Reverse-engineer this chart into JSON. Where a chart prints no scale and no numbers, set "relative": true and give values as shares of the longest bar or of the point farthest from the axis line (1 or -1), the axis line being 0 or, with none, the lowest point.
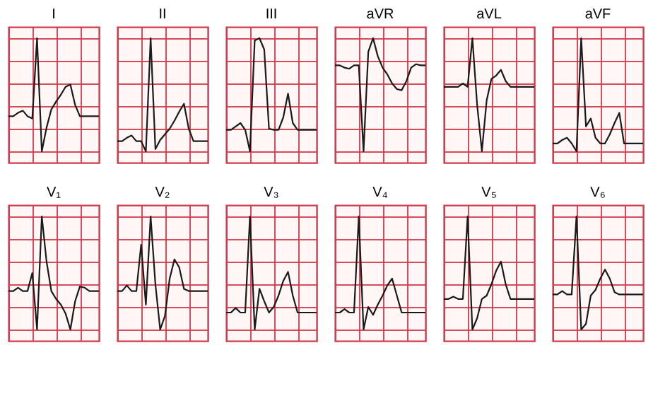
{
  "chart_data": [
    {
      "type": "line",
      "title": "I",
      "relative": true,
      "grid": true,
      "color": "#1a1a1a",
      "categories": [
        null,
        null,
        null,
        null,
        null,
        null,
        null,
        null,
        null,
        null,
        null,
        null,
        null,
        null,
        null,
        null,
        null,
        null,
        null,
        null
      ],
      "values": [
        0.31,
        0.31,
        0.34,
        0.36,
        0.31,
        0.29,
        1,
        0,
        0.21,
        0.37,
        0.44,
        0.5,
        0.57,
        0.59,
        0.41,
        0.31,
        0.31,
        0.31,
        0.31,
        0.31
      ]
    },
    {
      "type": "line",
      "title": "II",
      "relative": true,
      "grid": true,
      "color": "#1a1a1a",
      "categories": [
        null,
        null,
        null,
        null,
        null,
        null,
        null,
        null,
        null,
        null,
        null,
        null,
        null,
        null,
        null,
        null,
        null,
        null,
        null,
        null
      ],
      "values": [
        0.09,
        0.09,
        0.12,
        0.14,
        0.09,
        0.09,
        0,
        1,
        0.02,
        0.1,
        0.15,
        0.2,
        0.27,
        0.35,
        0.42,
        0.2,
        0.09,
        0.09,
        0.09,
        0.09
      ]
    },
    {
      "type": "line",
      "title": "III",
      "relative": true,
      "grid": true,
      "color": "#1a1a1a",
      "categories": [
        null,
        null,
        null,
        null,
        null,
        null,
        null,
        null,
        null,
        null,
        null,
        null,
        null,
        null,
        null,
        null,
        null,
        null,
        null,
        null
      ],
      "values": [
        0.19,
        0.19,
        0.22,
        0.25,
        0.19,
        0,
        0.98,
        1,
        0.9,
        0.2,
        0.19,
        0.19,
        0.3,
        0.51,
        0.25,
        0.19,
        0.19,
        0.19,
        0.19,
        0.19
      ]
    },
    {
      "type": "line",
      "title": "aVR",
      "relative": true,
      "grid": true,
      "color": "#1a1a1a",
      "categories": [
        null,
        null,
        null,
        null,
        null,
        null,
        null,
        null,
        null,
        null,
        null,
        null,
        null,
        null,
        null,
        null,
        null,
        null,
        null,
        null
      ],
      "values": [
        0.76,
        0.76,
        0.74,
        0.73,
        0.76,
        0.76,
        0,
        0.88,
        1,
        0.84,
        0.74,
        0.68,
        0.6,
        0.55,
        0.54,
        0.62,
        0.74,
        0.77,
        0.76,
        0.76
      ]
    },
    {
      "type": "line",
      "title": "aVL",
      "relative": true,
      "grid": true,
      "color": "#1a1a1a",
      "categories": [
        null,
        null,
        null,
        null,
        null,
        null,
        null,
        null,
        null,
        null,
        null,
        null,
        null,
        null,
        null,
        null,
        null,
        null,
        null,
        null
      ],
      "values": [
        0.57,
        0.57,
        0.57,
        0.57,
        0.6,
        0.57,
        1,
        0.41,
        0,
        0.45,
        0.64,
        0.67,
        0.72,
        0.62,
        0.57,
        0.57,
        0.57,
        0.57,
        0.57,
        0.57
      ]
    },
    {
      "type": "line",
      "title": "aVF",
      "relative": true,
      "grid": true,
      "color": "#1a1a1a",
      "categories": [
        null,
        null,
        null,
        null,
        null,
        null,
        null,
        null,
        null,
        null,
        null,
        null,
        null,
        null,
        null,
        null,
        null,
        null,
        null,
        null
      ],
      "values": [
        0.07,
        0.07,
        0.1,
        0.12,
        0.07,
        0,
        1,
        0.22,
        0.29,
        0.12,
        0.07,
        0.07,
        0.15,
        0.25,
        0.34,
        0.07,
        0.07,
        0.07,
        0.07,
        0.07
      ]
    },
    {
      "type": "line",
      "title": "V₁",
      "relative": true,
      "grid": true,
      "color": "#1a1a1a",
      "categories": [
        null,
        null,
        null,
        null,
        null,
        null,
        null,
        null,
        null,
        null,
        null,
        null,
        null,
        null,
        null,
        null,
        null,
        null,
        null,
        null
      ],
      "values": [
        0.34,
        0.34,
        0.37,
        0.34,
        0.34,
        0.5,
        0,
        1,
        0.6,
        0.34,
        0.27,
        0.22,
        0.14,
        0,
        0.25,
        0.38,
        0.37,
        0.34,
        0.34,
        0.34
      ]
    },
    {
      "type": "line",
      "title": "V₂",
      "relative": true,
      "grid": true,
      "color": "#1a1a1a",
      "categories": [
        null,
        null,
        null,
        null,
        null,
        null,
        null,
        null,
        null,
        null,
        null,
        null,
        null,
        null,
        null,
        null,
        null,
        null,
        null,
        null
      ],
      "values": [
        0.34,
        0.34,
        0.39,
        0.34,
        0.34,
        0.75,
        0.22,
        1,
        0.4,
        0,
        0.12,
        0.45,
        0.62,
        0.55,
        0.36,
        0.34,
        0.34,
        0.34,
        0.34,
        0.34
      ]
    },
    {
      "type": "line",
      "title": "V₃",
      "relative": true,
      "grid": true,
      "color": "#1a1a1a",
      "categories": [
        null,
        null,
        null,
        null,
        null,
        null,
        null,
        null,
        null,
        null,
        null,
        null,
        null,
        null,
        null,
        null,
        null,
        null,
        null,
        null
      ],
      "values": [
        0.15,
        0.15,
        0.19,
        0.15,
        0.15,
        1,
        0,
        0.36,
        0.25,
        0.15,
        0.2,
        0.3,
        0.43,
        0.51,
        0.3,
        0.15,
        0.15,
        0.15,
        0.15,
        0.15
      ]
    },
    {
      "type": "line",
      "title": "V₄",
      "relative": true,
      "grid": true,
      "color": "#1a1a1a",
      "categories": [
        null,
        null,
        null,
        null,
        null,
        null,
        null,
        null,
        null,
        null,
        null,
        null,
        null,
        null,
        null,
        null,
        null,
        null,
        null,
        null
      ],
      "values": [
        0.15,
        0.15,
        0.18,
        0.15,
        0.15,
        1,
        0,
        0.2,
        0.13,
        0.22,
        0.3,
        0.39,
        0.45,
        0.3,
        0.15,
        0.15,
        0.15,
        0.15,
        0.15,
        0.15
      ]
    },
    {
      "type": "line",
      "title": "V₅",
      "relative": true,
      "grid": true,
      "color": "#1a1a1a",
      "categories": [
        null,
        null,
        null,
        null,
        null,
        null,
        null,
        null,
        null,
        null,
        null,
        null,
        null,
        null,
        null,
        null,
        null,
        null,
        null,
        null
      ],
      "values": [
        0.27,
        0.27,
        0.29,
        0.27,
        0.27,
        1,
        0,
        0.1,
        0.27,
        0.3,
        0.4,
        0.52,
        0.6,
        0.4,
        0.27,
        0.27,
        0.27,
        0.27,
        0.27,
        0.27
      ]
    },
    {
      "type": "line",
      "title": "V₆",
      "relative": true,
      "grid": true,
      "color": "#1a1a1a",
      "categories": [
        null,
        null,
        null,
        null,
        null,
        null,
        null,
        null,
        null,
        null,
        null,
        null,
        null,
        null,
        null,
        null,
        null,
        null,
        null,
        null
      ],
      "values": [
        0.31,
        0.31,
        0.34,
        0.31,
        0.31,
        1,
        0,
        0.05,
        0.3,
        0.35,
        0.45,
        0.53,
        0.45,
        0.33,
        0.31,
        0.31,
        0.31,
        0.31,
        0.31,
        0.31
      ]
    }
  ]
}
